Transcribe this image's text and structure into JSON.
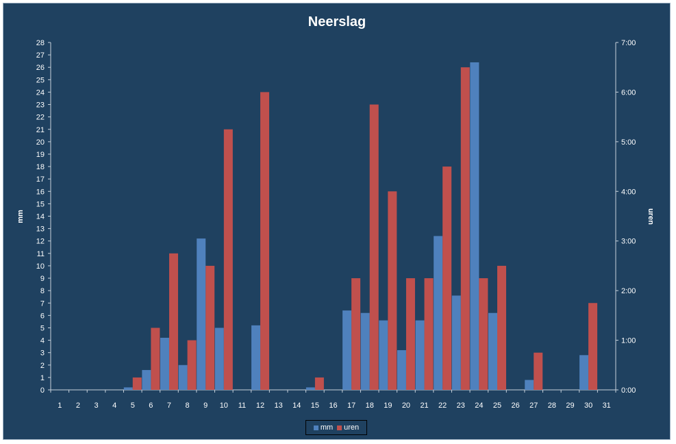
{
  "chart_data": {
    "type": "bar",
    "title": "Neerslag",
    "ylabel_left": "mm",
    "ylabel_right": "uren",
    "ylim_left": [
      0,
      28
    ],
    "ylim_right": [
      "0:00",
      "7:00"
    ],
    "y_right_ticks": [
      "0:00",
      "1:00",
      "2:00",
      "3:00",
      "4:00",
      "5:00",
      "6:00",
      "7:00"
    ],
    "categories": [
      "1",
      "2",
      "3",
      "4",
      "5",
      "6",
      "7",
      "8",
      "9",
      "10",
      "11",
      "12",
      "13",
      "14",
      "15",
      "16",
      "17",
      "18",
      "19",
      "20",
      "21",
      "22",
      "23",
      "24",
      "25",
      "26",
      "27",
      "28",
      "29",
      "30",
      "31"
    ],
    "legend_position": "bottom",
    "grid": false,
    "series": [
      {
        "name": "mm",
        "axis": "left",
        "color": "#4f81bd",
        "values": [
          0,
          0,
          0,
          0,
          0.2,
          1.6,
          4.2,
          2.0,
          12.2,
          5.0,
          0,
          5.2,
          0,
          0,
          0.2,
          0,
          6.4,
          6.2,
          5.6,
          3.2,
          5.6,
          12.4,
          7.6,
          26.4,
          6.2,
          0,
          0.8,
          0,
          0,
          2.8,
          0
        ]
      },
      {
        "name": "uren",
        "axis": "right",
        "color": "#c0504d",
        "values_hours": [
          0,
          0,
          0,
          0,
          0.25,
          1.25,
          2.75,
          1.0,
          2.5,
          5.25,
          0,
          6.0,
          0,
          0,
          0.25,
          0,
          2.25,
          5.75,
          4.0,
          2.25,
          2.25,
          4.5,
          6.5,
          2.25,
          2.5,
          0,
          0.75,
          0,
          0,
          1.75,
          0
        ]
      }
    ]
  }
}
